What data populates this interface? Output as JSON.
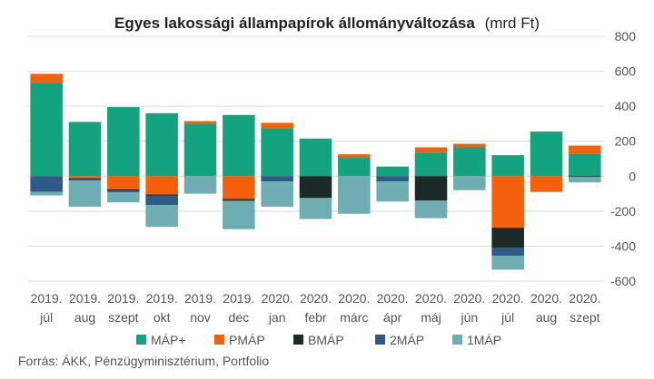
{
  "chart_data": {
    "type": "bar",
    "stacked": true,
    "title": "Egyes lakossági állampapírok állományváltozása",
    "title_unit": "(mrd Ft)",
    "categories": [
      [
        "2019.",
        "júl"
      ],
      [
        "2019.",
        "aug"
      ],
      [
        "2019.",
        "szept"
      ],
      [
        "2019.",
        "okt"
      ],
      [
        "2019.",
        "nov"
      ],
      [
        "2019.",
        "dec"
      ],
      [
        "2020.",
        "jan"
      ],
      [
        "2020.",
        "febr"
      ],
      [
        "2020.",
        "márc"
      ],
      [
        "2020.",
        "ápr"
      ],
      [
        "2020.",
        "máj"
      ],
      [
        "2020.",
        "jún"
      ],
      [
        "2020.",
        "júl"
      ],
      [
        "2020.",
        "aug"
      ],
      [
        "2020.",
        "szept"
      ]
    ],
    "series": [
      {
        "name": "MÁP+",
        "color": "#14a37f",
        "values": [
          535,
          310,
          395,
          360,
          300,
          350,
          275,
          215,
          105,
          55,
          135,
          165,
          120,
          255,
          130
        ]
      },
      {
        "name": "PMÁP",
        "color": "#f4600c",
        "values": [
          50,
          -12,
          -75,
          -105,
          15,
          -130,
          30,
          0,
          20,
          0,
          30,
          20,
          -295,
          -90,
          45
        ]
      },
      {
        "name": "BMÁP",
        "color": "#1b2a26",
        "values": [
          0,
          -5,
          -8,
          -5,
          0,
          -8,
          0,
          -125,
          0,
          0,
          -140,
          0,
          -115,
          0,
          -5
        ]
      },
      {
        "name": "2MÁP",
        "color": "#2e5a87",
        "values": [
          -90,
          -8,
          -10,
          -55,
          0,
          -5,
          -30,
          0,
          0,
          -30,
          0,
          0,
          -45,
          0,
          0
        ]
      },
      {
        "name": "1MÁP",
        "color": "#6eaeb2",
        "values": [
          -20,
          -150,
          -57,
          -125,
          -100,
          -160,
          -145,
          -120,
          -215,
          -115,
          -100,
          -80,
          -80,
          0,
          -30
        ]
      }
    ],
    "yticks": [
      800,
      600,
      400,
      200,
      0,
      -200,
      -400,
      -600
    ],
    "ylim": [
      -600,
      800
    ],
    "legend_position": "bottom",
    "grid": true,
    "source": "Forrás: ÁKK, Pénzügyminisztérium, Portfolio"
  }
}
